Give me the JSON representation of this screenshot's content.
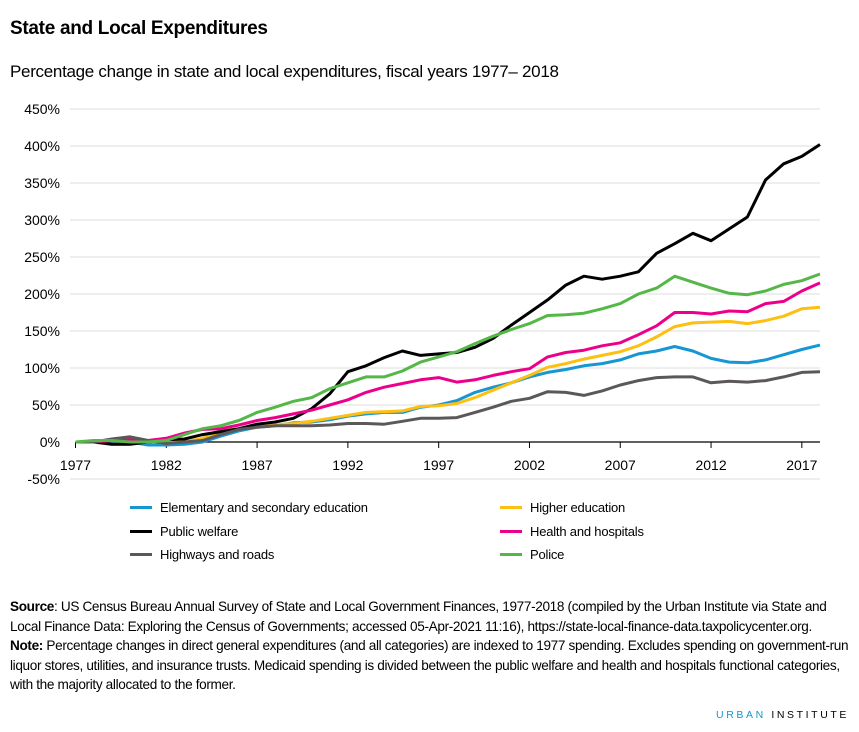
{
  "title": "State and Local Expenditures",
  "subtitle": "Percentage change in state and local expenditures, fiscal years 1977– 2018",
  "chart_data": {
    "type": "line",
    "title": "State and Local Expenditures",
    "subtitle": "Percentage change in state and local expenditures, fiscal years 1977– 2018",
    "xlabel": "",
    "ylabel": "",
    "x": [
      1977,
      1978,
      1979,
      1980,
      1981,
      1982,
      1983,
      1984,
      1985,
      1986,
      1987,
      1988,
      1989,
      1990,
      1991,
      1992,
      1993,
      1994,
      1995,
      1996,
      1997,
      1998,
      1999,
      2000,
      2001,
      2002,
      2003,
      2004,
      2005,
      2006,
      2007,
      2008,
      2009,
      2010,
      2011,
      2012,
      2013,
      2014,
      2015,
      2016,
      2017,
      2018
    ],
    "xlim": [
      1977,
      2018
    ],
    "x_ticks": [
      "1977",
      "1982",
      "1987",
      "1992",
      "1997",
      "2002",
      "2007",
      "2012",
      "2017"
    ],
    "ylim": [
      -50,
      450
    ],
    "y_ticks": [
      "-50%",
      "0%",
      "50%",
      "100%",
      "150%",
      "200%",
      "250%",
      "300%",
      "350%",
      "400%",
      "450%"
    ],
    "y_unit": "%",
    "grid": true,
    "legend_position": "bottom",
    "series": [
      {
        "name": "Elementary and secondary education",
        "color": "#1696d2",
        "values": [
          0,
          0,
          0,
          0,
          -4,
          -4,
          -3,
          0,
          8,
          15,
          20,
          22,
          26,
          27,
          30,
          35,
          38,
          40,
          40,
          47,
          50,
          56,
          67,
          74,
          80,
          88,
          94,
          98,
          103,
          106,
          111,
          119,
          123,
          129,
          123,
          113,
          108,
          107,
          111,
          118,
          125,
          131
        ]
      },
      {
        "name": "Higher education",
        "color": "#fdbf11",
        "values": [
          0,
          0,
          -3,
          -3,
          0,
          0,
          0,
          5,
          14,
          18,
          20,
          23,
          25,
          28,
          32,
          36,
          40,
          41,
          42,
          48,
          49,
          52,
          60,
          70,
          80,
          90,
          101,
          106,
          112,
          117,
          122,
          130,
          142,
          156,
          161,
          162,
          163,
          160,
          164,
          170,
          180,
          182
        ]
      },
      {
        "name": "Public welfare",
        "color": "#000000",
        "values": [
          0,
          0,
          -3,
          -3,
          0,
          3,
          4,
          10,
          14,
          18,
          24,
          27,
          32,
          45,
          65,
          95,
          103,
          114,
          123,
          117,
          119,
          121,
          128,
          140,
          158,
          175,
          192,
          212,
          224,
          220,
          224,
          230,
          255,
          268,
          282,
          272,
          288,
          304,
          354,
          376,
          386,
          402
        ]
      },
      {
        "name": "Health and hospitals",
        "color": "#ec008b",
        "values": [
          0,
          0,
          2,
          4,
          2,
          5,
          12,
          17,
          18,
          23,
          29,
          33,
          38,
          43,
          50,
          57,
          67,
          74,
          79,
          84,
          87,
          81,
          84,
          90,
          95,
          99,
          115,
          121,
          124,
          130,
          134,
          145,
          157,
          175,
          175,
          173,
          177,
          176,
          187,
          190,
          204,
          215
        ]
      },
      {
        "name": "Highways and roads",
        "color": "#5c5859",
        "values": [
          0,
          0,
          4,
          7,
          2,
          -2,
          0,
          2,
          10,
          17,
          20,
          22,
          22,
          22,
          23,
          25,
          25,
          24,
          28,
          32,
          32,
          33,
          40,
          47,
          55,
          59,
          68,
          67,
          63,
          69,
          77,
          83,
          87,
          88,
          88,
          80,
          82,
          81,
          83,
          88,
          94,
          95
        ]
      },
      {
        "name": "Police",
        "color": "#55b748",
        "values": [
          0,
          2,
          2,
          0,
          0,
          2,
          10,
          18,
          22,
          29,
          40,
          47,
          55,
          60,
          72,
          80,
          88,
          88,
          96,
          108,
          115,
          122,
          133,
          143,
          152,
          160,
          171,
          172,
          174,
          180,
          187,
          200,
          208,
          224,
          216,
          208,
          201,
          199,
          204,
          213,
          218,
          227
        ]
      }
    ]
  },
  "footer": {
    "source_label": "Source",
    "source_text": ": US Census  Bureau Annual Survey of State and Local Government Finances, 1977-2018 (compiled by the Urban Institute via State and Local Finance Data: Exploring the Census of Governments; accessed 05-Apr-2021 11:16), https://state-local-finance-data.taxpolicycenter.org.",
    "note_label": "Note:",
    "note_text": " Percentage changes in direct general expenditures (and all categories) are indexed to 1977 spending. Excludes spending on government-run liquor stores, utilities, and insurance trusts.  Medicaid spending is divided between the public welfare and health and hospitals functional categories, with the majority allocated to the former."
  },
  "brand": {
    "part1": "URBAN",
    "part2": "INSTITUTE"
  }
}
